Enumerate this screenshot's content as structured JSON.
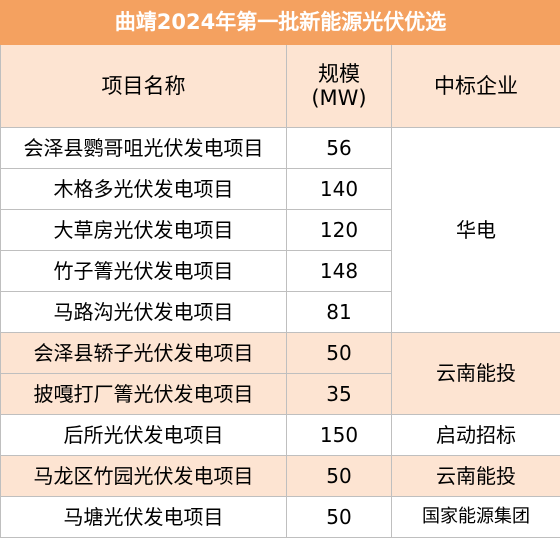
{
  "title": "曲靖2024年第一批新能源光伏优选",
  "headers": {
    "name": "项目名称",
    "scale_line1": "规模",
    "scale_line2": "(MW)",
    "company": "中标企业"
  },
  "rows": [
    {
      "name": "会泽县鹦哥咀光伏发电项目",
      "scale": "56"
    },
    {
      "name": "木格多光伏发电项目",
      "scale": "140"
    },
    {
      "name": "大草房光伏发电项目",
      "scale": "120"
    },
    {
      "name": "竹子箐光伏发电项目",
      "scale": "148"
    },
    {
      "name": "马路沟光伏发电项目",
      "scale": "81"
    },
    {
      "name": "会泽县轿子光伏发电项目",
      "scale": "50"
    },
    {
      "name": "披嘎打厂箐光伏发电项目",
      "scale": "35"
    },
    {
      "name": "后所光伏发电项目",
      "scale": "150"
    },
    {
      "name": "马龙区竹园光伏发电项目",
      "scale": "50"
    },
    {
      "name": "马塘光伏发电项目",
      "scale": "50"
    }
  ],
  "companies": {
    "huadian": "华电",
    "yunnan_1": "云南能投",
    "qidong": "启动招标",
    "yunnan_2": "云南能投",
    "guojia": "国家能源集团"
  }
}
